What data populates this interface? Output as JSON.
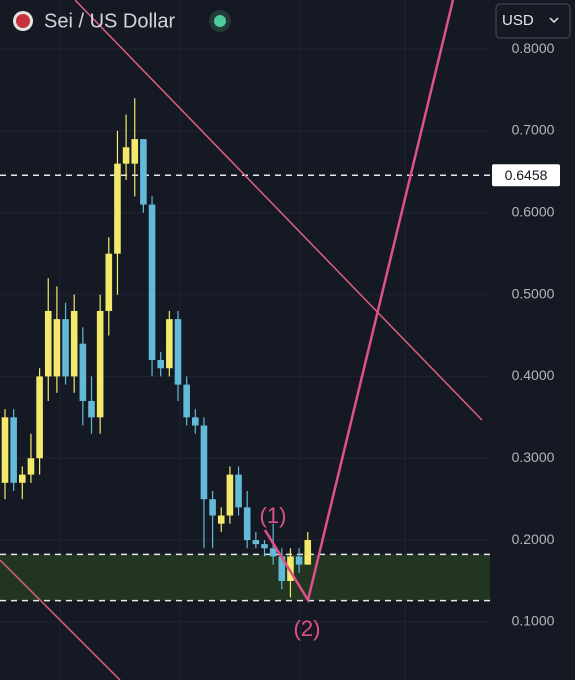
{
  "chart_data": {
    "type": "candlestick",
    "title": "Sei / US Dollar",
    "currency": "USD",
    "ylim": [
      0.029,
      0.86
    ],
    "yticks": [
      {
        "value": 0.1,
        "label": "0.1000"
      },
      {
        "value": 0.2,
        "label": "0.2000"
      },
      {
        "value": 0.3,
        "label": "0.3000"
      },
      {
        "value": 0.4,
        "label": "0.4000"
      },
      {
        "value": 0.5,
        "label": "0.5000"
      },
      {
        "value": 0.6,
        "label": "0.6000"
      },
      {
        "value": 0.7,
        "label": "0.7000"
      },
      {
        "value": 0.8,
        "label": "0.8000"
      }
    ],
    "grid": true,
    "up_color": "#f3e96a",
    "down_color": "#62b9d8",
    "candles": {
      "open": [
        0.27,
        0.35,
        0.27,
        0.28,
        0.3,
        0.4,
        0.4,
        0.47,
        0.4,
        0.44,
        0.37,
        0.35,
        0.48,
        0.55,
        0.66,
        0.66,
        0.69,
        0.61,
        0.42,
        0.41,
        0.47,
        0.39,
        0.35,
        0.34,
        0.25,
        0.22,
        0.23,
        0.28,
        0.24,
        0.2,
        0.195,
        0.19,
        0.18,
        0.15,
        0.18,
        0.17
      ],
      "high": [
        0.36,
        0.36,
        0.29,
        0.33,
        0.41,
        0.52,
        0.51,
        0.49,
        0.5,
        0.46,
        0.4,
        0.5,
        0.57,
        0.7,
        0.72,
        0.74,
        0.69,
        0.62,
        0.43,
        0.48,
        0.48,
        0.4,
        0.36,
        0.35,
        0.26,
        0.24,
        0.29,
        0.29,
        0.26,
        0.21,
        0.2,
        0.22,
        0.19,
        0.19,
        0.19,
        0.21
      ],
      "low": [
        0.25,
        0.26,
        0.25,
        0.27,
        0.28,
        0.37,
        0.38,
        0.39,
        0.38,
        0.34,
        0.33,
        0.33,
        0.45,
        0.5,
        0.64,
        0.62,
        0.6,
        0.4,
        0.4,
        0.4,
        0.37,
        0.34,
        0.33,
        0.19,
        0.19,
        0.21,
        0.22,
        0.23,
        0.19,
        0.19,
        0.18,
        0.17,
        0.14,
        0.13,
        0.16,
        0.17
      ],
      "close": [
        0.35,
        0.27,
        0.28,
        0.3,
        0.4,
        0.48,
        0.47,
        0.4,
        0.48,
        0.37,
        0.35,
        0.48,
        0.55,
        0.66,
        0.68,
        0.69,
        0.61,
        0.42,
        0.41,
        0.47,
        0.39,
        0.35,
        0.34,
        0.25,
        0.23,
        0.23,
        0.28,
        0.24,
        0.2,
        0.195,
        0.19,
        0.18,
        0.15,
        0.18,
        0.17,
        0.2
      ]
    },
    "price_line": 0.6458,
    "zone": [
      0.126,
      0.1825
    ],
    "annotations": [
      "(1)",
      "(2)"
    ]
  }
}
